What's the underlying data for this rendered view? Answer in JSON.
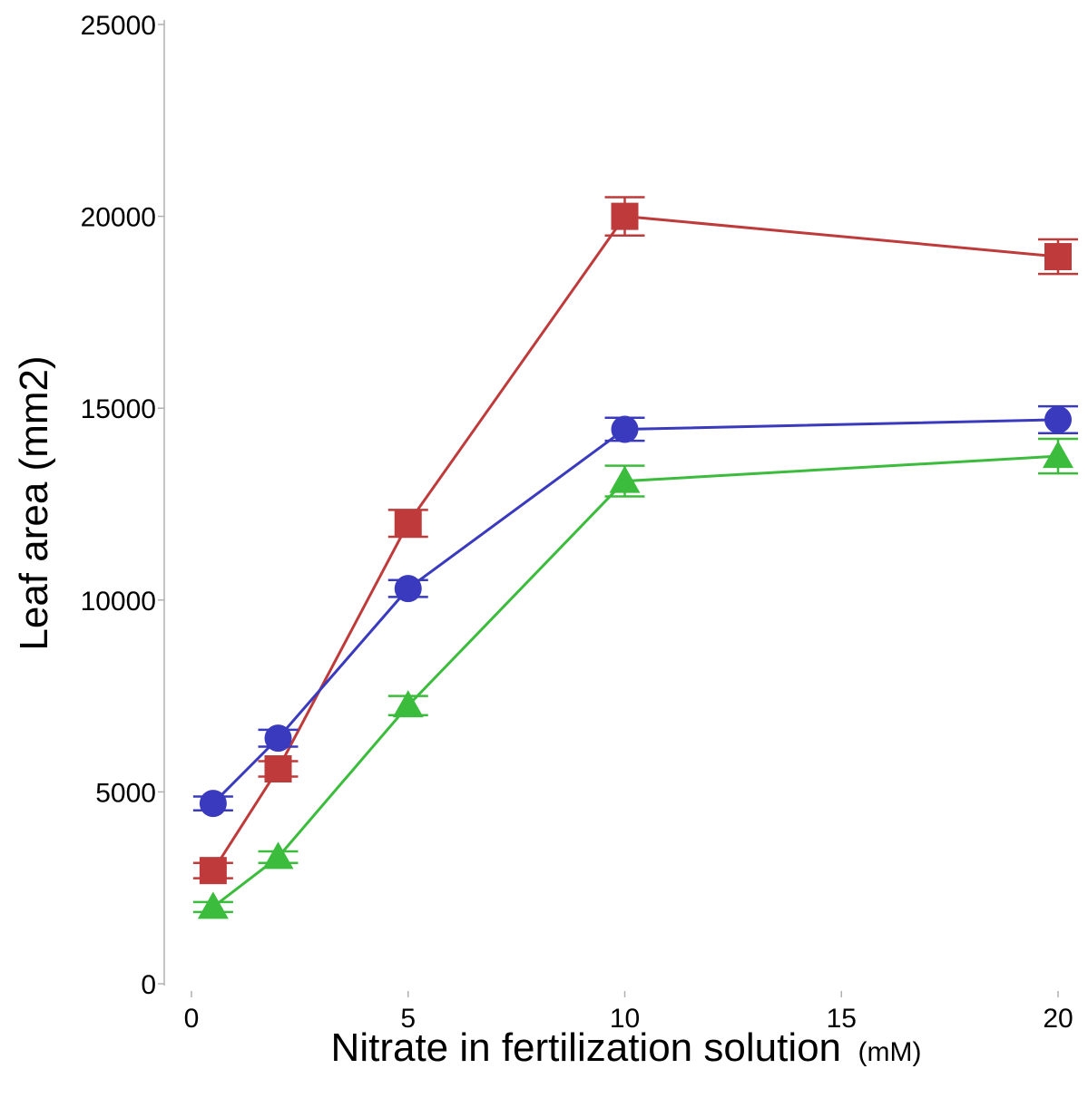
{
  "chart_data": {
    "type": "line",
    "title": "",
    "xlabel": "Nitrate in fertilization solution",
    "xlabel_unit": "(mM)",
    "ylabel": "Leaf area (mm2)",
    "xlim": [
      0,
      20
    ],
    "ylim": [
      0,
      25000
    ],
    "x_ticks": [
      0,
      5,
      10,
      15,
      20
    ],
    "x_tick_labels": [
      "0",
      "5",
      "10",
      "15",
      "20"
    ],
    "y_ticks": [
      0,
      5000,
      10000,
      15000,
      20000,
      25000
    ],
    "y_tick_labels": [
      "0",
      "5000",
      "10000",
      "15000",
      "20000",
      "25000"
    ],
    "grid": false,
    "legend": "none",
    "x": [
      0.5,
      2,
      5,
      10,
      20
    ],
    "series": [
      {
        "marker": "square",
        "color": "#bf3a3a",
        "values": [
          2950,
          5600,
          12000,
          20000,
          18950
        ],
        "errors": [
          200,
          200,
          350,
          500,
          450
        ]
      },
      {
        "marker": "circle",
        "color": "#3a3abf",
        "values": [
          4700,
          6400,
          10300,
          14450,
          14700
        ],
        "errors": [
          180,
          220,
          220,
          300,
          350
        ]
      },
      {
        "marker": "triangle",
        "color": "#3cbc3c",
        "values": [
          2000,
          3300,
          7250,
          13100,
          13750
        ],
        "errors": [
          130,
          150,
          250,
          400,
          450
        ]
      }
    ]
  }
}
